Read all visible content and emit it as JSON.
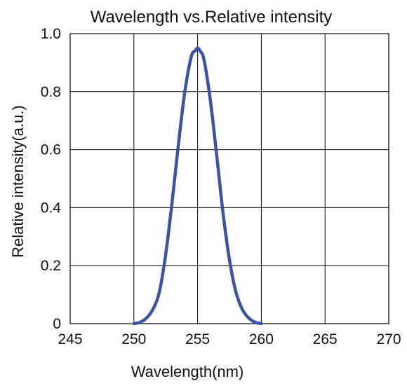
{
  "chart_data": {
    "type": "line",
    "title": "Wavelength vs.Relative intensity",
    "xlabel": "Wavelength(nm)",
    "ylabel": "Relative intensity(a.u.)",
    "xlim": [
      245,
      270
    ],
    "ylim": [
      0,
      1.0
    ],
    "x_ticks": [
      "245",
      "250",
      "255",
      "260",
      "265",
      "270"
    ],
    "y_ticks": [
      "0",
      "0.2",
      "0.4",
      "0.6",
      "0.8",
      "1.0"
    ],
    "grid": true,
    "series_color": "#3a54a4",
    "series": [
      {
        "x": [
          250.0,
          250.5,
          251.0,
          251.5,
          252.0,
          252.5,
          253.0,
          253.5,
          254.0,
          254.5,
          254.8,
          255.0,
          255.2,
          255.5,
          256.0,
          256.5,
          257.0,
          257.5,
          258.0,
          258.5,
          259.0,
          259.5,
          260.0
        ],
        "y": [
          0.0,
          0.005,
          0.02,
          0.05,
          0.11,
          0.24,
          0.42,
          0.62,
          0.8,
          0.92,
          0.94,
          0.95,
          0.94,
          0.91,
          0.77,
          0.58,
          0.38,
          0.22,
          0.11,
          0.05,
          0.02,
          0.005,
          0.0
        ]
      }
    ]
  }
}
